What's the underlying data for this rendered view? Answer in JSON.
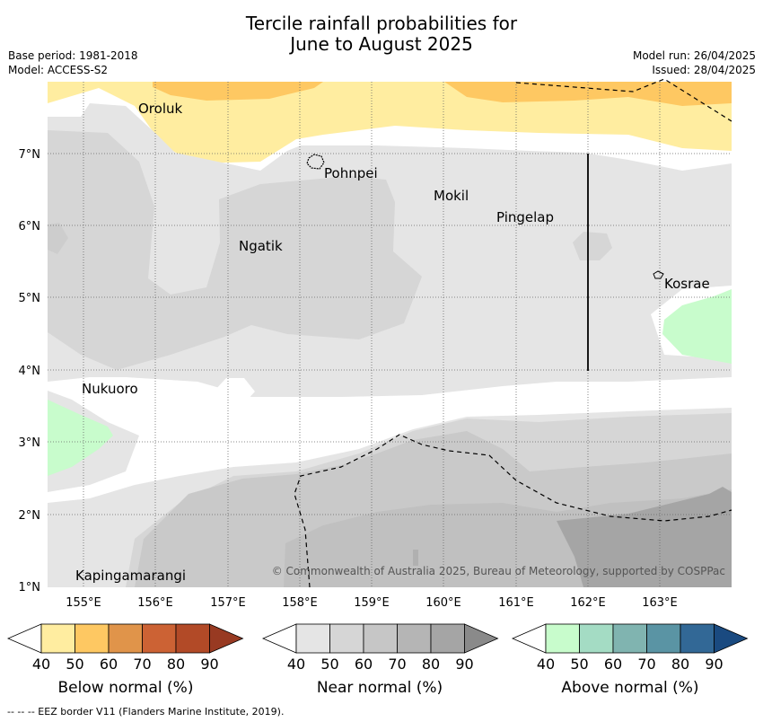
{
  "header": {
    "title_line1": "Tercile rainfall probabilities for",
    "title_line2": "June to August 2025",
    "base_period": "Base period: 1981-2018",
    "model": "Model: ACCESS-S2",
    "model_run": "Model run: 26/04/2025",
    "issued": "Issued: 28/04/2025"
  },
  "map": {
    "lat_labels": [
      "7°N",
      "6°N",
      "5°N",
      "4°N",
      "3°N",
      "2°N",
      "1°N"
    ],
    "lon_labels": [
      "155°E",
      "156°E",
      "157°E",
      "158°E",
      "159°E",
      "160°E",
      "161°E",
      "162°E",
      "163°E"
    ],
    "places": [
      "Oroluk",
      "Pohnpei",
      "Mokil",
      "Pingelap",
      "Ngatik",
      "Kosrae",
      "Nukuoro",
      "Kapingamarangi"
    ],
    "copyright": "© Commonwealth of Australia 2025, Bureau of Meteorology, supported by COSPPac"
  },
  "colorbars": [
    {
      "label": "Below normal (%)",
      "ticks": [
        "40",
        "50",
        "60",
        "70",
        "80",
        "90"
      ],
      "colors": [
        "#ffeda0",
        "#fec862",
        "#e0944a",
        "#cc6234",
        "#b24a27",
        "#983a22"
      ]
    },
    {
      "label": "Near normal (%)",
      "ticks": [
        "40",
        "50",
        "60",
        "70",
        "80",
        "90"
      ],
      "colors": [
        "#e5e5e5",
        "#d6d6d6",
        "#c6c6c6",
        "#b5b5b5",
        "#a5a5a5",
        "#8a8a8a"
      ]
    },
    {
      "label": "Above normal (%)",
      "ticks": [
        "40",
        "50",
        "60",
        "70",
        "80",
        "90"
      ],
      "colors": [
        "#c8fccc",
        "#a4dcc4",
        "#80b4b0",
        "#5a94a4",
        "#326896",
        "#1a4a80"
      ]
    }
  ],
  "footer": "--  --  -- EEZ border V11 (Flanders Marine Institute, 2019)."
}
